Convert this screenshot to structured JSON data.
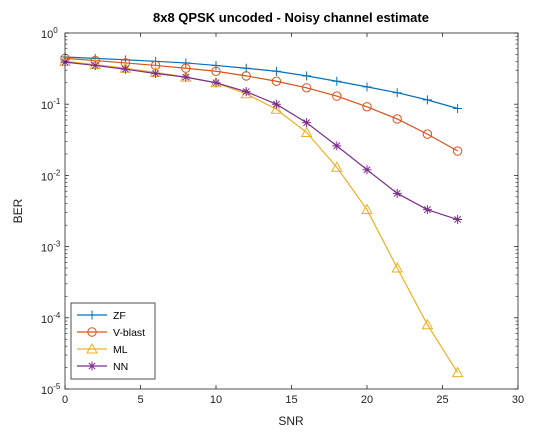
{
  "chart_data": {
    "type": "line",
    "title": "8x8 QPSK uncoded - Noisy channel estimate",
    "xlabel": "SNR",
    "ylabel": "BER",
    "xlim": [
      0,
      30
    ],
    "ylim": [
      1e-05,
      1
    ],
    "yscale": "log",
    "xticks": [
      "0",
      "5",
      "10",
      "15",
      "20",
      "25",
      "30"
    ],
    "yticks": [
      {
        "base": "10",
        "exp": "0"
      },
      {
        "base": "10",
        "exp": "-1"
      },
      {
        "base": "10",
        "exp": "-2"
      },
      {
        "base": "10",
        "exp": "-3"
      },
      {
        "base": "10",
        "exp": "-4"
      },
      {
        "base": "10",
        "exp": "-5"
      }
    ],
    "grid": false,
    "legend_position": "bottom-left",
    "x": [
      0,
      2,
      4,
      6,
      8,
      10,
      12,
      14,
      16,
      18,
      20,
      22,
      24,
      26
    ],
    "series": [
      {
        "name": "ZF",
        "color": "#0072BD",
        "marker": "plus",
        "values": [
          0.46,
          0.44,
          0.42,
          0.4,
          0.38,
          0.35,
          0.32,
          0.29,
          0.25,
          0.21,
          0.175,
          0.145,
          0.115,
          0.087
        ]
      },
      {
        "name": "V-blast",
        "color": "#D95319",
        "marker": "circle",
        "values": [
          0.44,
          0.41,
          0.38,
          0.35,
          0.32,
          0.29,
          0.25,
          0.21,
          0.17,
          0.13,
          0.092,
          0.062,
          0.038,
          0.022
        ]
      },
      {
        "name": "ML",
        "color": "#EDB120",
        "marker": "triangle",
        "values": [
          0.4,
          0.36,
          0.32,
          0.28,
          0.24,
          0.2,
          0.14,
          0.085,
          0.04,
          0.013,
          0.0033,
          0.0005,
          8e-05,
          1.7e-05
        ]
      },
      {
        "name": "NN",
        "color": "#7E2F8E",
        "marker": "star",
        "values": [
          0.39,
          0.35,
          0.31,
          0.27,
          0.24,
          0.2,
          0.15,
          0.1,
          0.055,
          0.026,
          0.012,
          0.0056,
          0.0033,
          0.0024
        ]
      }
    ]
  }
}
